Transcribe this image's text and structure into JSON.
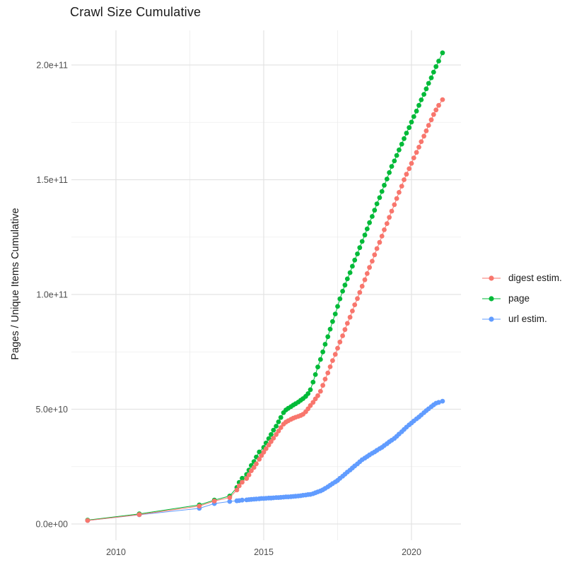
{
  "title": "Crawl Size Cumulative",
  "axes": {
    "y_title": "Pages / Unique Items Cumulative",
    "x_ticks": [
      {
        "label": "2010",
        "year": 2010
      },
      {
        "label": "2015",
        "year": 2015
      },
      {
        "label": "2020",
        "year": 2020
      }
    ],
    "x_minor_years": [
      2012.5,
      2017.5
    ],
    "y_ticks": [
      {
        "label": "0.0e+00",
        "value_e9": 0
      },
      {
        "label": "5.0e+10",
        "value_e9": 50
      },
      {
        "label": "1.0e+11",
        "value_e9": 100
      },
      {
        "label": "1.5e+11",
        "value_e9": 150
      },
      {
        "label": "2.0e+11",
        "value_e9": 200
      }
    ],
    "y_minor_e9": [
      25,
      75,
      125,
      175
    ]
  },
  "legend": {
    "items": [
      {
        "label": "digest estim.",
        "color": "#F8766D",
        "key": "digest"
      },
      {
        "label": "page",
        "color": "#00BA38",
        "key": "page"
      },
      {
        "label": "url estim.",
        "color": "#619CFF",
        "key": "url"
      }
    ]
  },
  "colors": {
    "background": "#FFFFFF",
    "grid_major": "#E3E3E3",
    "grid_minor": "#EDEDED",
    "axis_text": "#4D4D4D",
    "title_text": "#1A1A1A",
    "series_digest": "#F8766D",
    "series_page": "#00BA38",
    "series_url": "#619CFF"
  },
  "chart_data": {
    "type": "line",
    "title": "Crawl Size Cumulative",
    "xlabel": "",
    "ylabel": "Pages / Unique Items Cumulative",
    "x_range": [
      2008.5,
      2021.7
    ],
    "y_range_e9": [
      -7,
      215
    ],
    "y_unit_multiplier": 1000000000.0,
    "grid": true,
    "legend_position": "right",
    "marker": "point-with-line",
    "draw_order": [
      "url estim.",
      "page",
      "digest estim."
    ],
    "series": [
      {
        "name": "digest estim.",
        "color": "#F8766D",
        "points_year_value_e9": [
          [
            2009.04,
            1.5
          ],
          [
            2010.79,
            4.1
          ],
          [
            2012.82,
            7.8
          ],
          [
            2013.33,
            10.0
          ],
          [
            2013.85,
            11.5
          ],
          [
            2014.09,
            14.8
          ],
          [
            2014.17,
            16.6
          ],
          [
            2014.27,
            18.2
          ],
          [
            2014.42,
            19.8
          ],
          [
            2014.5,
            21.4
          ],
          [
            2014.58,
            23.2
          ],
          [
            2014.67,
            24.6
          ],
          [
            2014.75,
            26.2
          ],
          [
            2014.85,
            28.2
          ],
          [
            2014.92,
            29.8
          ],
          [
            2015.0,
            31.3
          ],
          [
            2015.08,
            32.8
          ],
          [
            2015.17,
            34.4
          ],
          [
            2015.25,
            35.9
          ],
          [
            2015.33,
            37.4
          ],
          [
            2015.42,
            39.0
          ],
          [
            2015.5,
            40.5
          ],
          [
            2015.58,
            42.0
          ],
          [
            2015.67,
            43.5
          ],
          [
            2015.75,
            44.4
          ],
          [
            2015.83,
            45.0
          ],
          [
            2015.92,
            45.6
          ],
          [
            2016.0,
            46.1
          ],
          [
            2016.08,
            46.5
          ],
          [
            2016.17,
            46.9
          ],
          [
            2016.25,
            47.3
          ],
          [
            2016.33,
            47.8
          ],
          [
            2016.42,
            48.9
          ],
          [
            2016.5,
            50.2
          ],
          [
            2016.58,
            51.6
          ],
          [
            2016.67,
            53.0
          ],
          [
            2016.75,
            54.5
          ],
          [
            2016.83,
            55.9
          ],
          [
            2016.92,
            57.8
          ],
          [
            2017.0,
            60.4
          ],
          [
            2017.08,
            63.1
          ],
          [
            2017.17,
            65.8
          ],
          [
            2017.25,
            68.5
          ],
          [
            2017.33,
            71.2
          ],
          [
            2017.42,
            73.9
          ],
          [
            2017.5,
            76.6
          ],
          [
            2017.58,
            79.3
          ],
          [
            2017.67,
            82.0
          ],
          [
            2017.75,
            84.7
          ],
          [
            2017.83,
            87.4
          ],
          [
            2017.92,
            90.1
          ],
          [
            2018.0,
            92.8
          ],
          [
            2018.08,
            95.5
          ],
          [
            2018.17,
            98.2
          ],
          [
            2018.25,
            100.9
          ],
          [
            2018.33,
            103.6
          ],
          [
            2018.42,
            106.4
          ],
          [
            2018.5,
            109.1
          ],
          [
            2018.58,
            111.8
          ],
          [
            2018.67,
            114.5
          ],
          [
            2018.75,
            117.3
          ],
          [
            2018.83,
            120.0
          ],
          [
            2018.92,
            122.7
          ],
          [
            2019.0,
            125.4
          ],
          [
            2019.08,
            128.2
          ],
          [
            2019.17,
            130.9
          ],
          [
            2019.25,
            133.6
          ],
          [
            2019.33,
            136.3
          ],
          [
            2019.42,
            139.1
          ],
          [
            2019.5,
            141.8
          ],
          [
            2019.58,
            144.5
          ],
          [
            2019.67,
            147.2
          ],
          [
            2019.75,
            150.0
          ],
          [
            2019.83,
            152.4
          ],
          [
            2019.92,
            154.8
          ],
          [
            2020.0,
            157.1
          ],
          [
            2020.08,
            159.5
          ],
          [
            2020.17,
            161.9
          ],
          [
            2020.25,
            164.2
          ],
          [
            2020.33,
            166.6
          ],
          [
            2020.42,
            169.0
          ],
          [
            2020.5,
            171.3
          ],
          [
            2020.58,
            173.7
          ],
          [
            2020.67,
            176.1
          ],
          [
            2020.75,
            178.4
          ],
          [
            2020.83,
            180.4
          ],
          [
            2020.92,
            182.4
          ],
          [
            2021.05,
            184.9
          ]
        ]
      },
      {
        "name": "page",
        "color": "#00BA38",
        "points_year_value_e9": [
          [
            2009.04,
            1.7
          ],
          [
            2010.79,
            4.4
          ],
          [
            2012.82,
            8.3
          ],
          [
            2013.33,
            10.4
          ],
          [
            2013.85,
            12.2
          ],
          [
            2014.09,
            15.9
          ],
          [
            2014.17,
            18.1
          ],
          [
            2014.27,
            19.9
          ],
          [
            2014.42,
            21.6
          ],
          [
            2014.5,
            23.5
          ],
          [
            2014.58,
            25.5
          ],
          [
            2014.67,
            27.2
          ],
          [
            2014.75,
            29.2
          ],
          [
            2014.85,
            31.4
          ],
          [
            2015.0,
            33.4
          ],
          [
            2015.08,
            35.3
          ],
          [
            2015.17,
            37.2
          ],
          [
            2015.25,
            39.0
          ],
          [
            2015.33,
            40.9
          ],
          [
            2015.42,
            42.6
          ],
          [
            2015.5,
            44.5
          ],
          [
            2015.58,
            46.4
          ],
          [
            2015.67,
            48.5
          ],
          [
            2015.75,
            49.7
          ],
          [
            2015.83,
            50.4
          ],
          [
            2015.92,
            51.1
          ],
          [
            2016.0,
            51.8
          ],
          [
            2016.08,
            52.4
          ],
          [
            2016.17,
            53.1
          ],
          [
            2016.25,
            53.9
          ],
          [
            2016.33,
            54.6
          ],
          [
            2016.42,
            55.6
          ],
          [
            2016.5,
            56.8
          ],
          [
            2016.58,
            58.5
          ],
          [
            2016.67,
            61.8
          ],
          [
            2016.75,
            65.1
          ],
          [
            2016.83,
            68.4
          ],
          [
            2016.92,
            71.7
          ],
          [
            2017.0,
            75.0
          ],
          [
            2017.08,
            78.3
          ],
          [
            2017.17,
            81.6
          ],
          [
            2017.25,
            84.9
          ],
          [
            2017.33,
            88.2
          ],
          [
            2017.42,
            91.5
          ],
          [
            2017.5,
            94.8
          ],
          [
            2017.58,
            98.1
          ],
          [
            2017.67,
            101.4
          ],
          [
            2017.75,
            104.1
          ],
          [
            2017.83,
            106.8
          ],
          [
            2017.92,
            109.5
          ],
          [
            2018.0,
            112.3
          ],
          [
            2018.08,
            115.0
          ],
          [
            2018.17,
            117.7
          ],
          [
            2018.25,
            120.4
          ],
          [
            2018.33,
            123.1
          ],
          [
            2018.42,
            125.9
          ],
          [
            2018.5,
            128.6
          ],
          [
            2018.58,
            131.3
          ],
          [
            2018.67,
            134.0
          ],
          [
            2018.75,
            136.7
          ],
          [
            2018.83,
            139.5
          ],
          [
            2018.92,
            142.2
          ],
          [
            2019.0,
            144.9
          ],
          [
            2019.08,
            147.6
          ],
          [
            2019.17,
            150.3
          ],
          [
            2019.25,
            153.1
          ],
          [
            2019.33,
            155.8
          ],
          [
            2019.42,
            158.2
          ],
          [
            2019.5,
            160.6
          ],
          [
            2019.58,
            163.0
          ],
          [
            2019.67,
            165.5
          ],
          [
            2019.75,
            167.9
          ],
          [
            2019.83,
            170.3
          ],
          [
            2019.92,
            172.7
          ],
          [
            2020.0,
            175.1
          ],
          [
            2020.08,
            177.5
          ],
          [
            2020.17,
            179.9
          ],
          [
            2020.25,
            182.4
          ],
          [
            2020.33,
            184.8
          ],
          [
            2020.42,
            187.2
          ],
          [
            2020.5,
            189.6
          ],
          [
            2020.58,
            192.0
          ],
          [
            2020.67,
            194.4
          ],
          [
            2020.75,
            196.9
          ],
          [
            2020.83,
            199.3
          ],
          [
            2020.92,
            201.7
          ],
          [
            2021.05,
            205.3
          ]
        ]
      },
      {
        "name": "url estim.",
        "color": "#619CFF",
        "points_year_value_e9": [
          [
            2009.04,
            1.5
          ],
          [
            2010.79,
            4.0
          ],
          [
            2012.82,
            6.8
          ],
          [
            2013.33,
            8.9
          ],
          [
            2013.85,
            9.8
          ],
          [
            2014.09,
            10.1
          ],
          [
            2014.17,
            10.2
          ],
          [
            2014.27,
            10.4
          ],
          [
            2014.42,
            10.5
          ],
          [
            2014.5,
            10.6
          ],
          [
            2014.58,
            10.7
          ],
          [
            2014.67,
            10.8
          ],
          [
            2014.75,
            10.9
          ],
          [
            2014.85,
            11.0
          ],
          [
            2014.92,
            11.1
          ],
          [
            2015.0,
            11.1
          ],
          [
            2015.08,
            11.2
          ],
          [
            2015.17,
            11.3
          ],
          [
            2015.25,
            11.3
          ],
          [
            2015.33,
            11.4
          ],
          [
            2015.42,
            11.5
          ],
          [
            2015.5,
            11.5
          ],
          [
            2015.58,
            11.6
          ],
          [
            2015.67,
            11.7
          ],
          [
            2015.75,
            11.8
          ],
          [
            2015.83,
            11.8
          ],
          [
            2015.92,
            11.9
          ],
          [
            2016.0,
            12.0
          ],
          [
            2016.08,
            12.1
          ],
          [
            2016.17,
            12.2
          ],
          [
            2016.25,
            12.3
          ],
          [
            2016.33,
            12.5
          ],
          [
            2016.42,
            12.6
          ],
          [
            2016.5,
            12.8
          ],
          [
            2016.58,
            12.9
          ],
          [
            2016.67,
            13.2
          ],
          [
            2016.75,
            13.6
          ],
          [
            2016.83,
            14.0
          ],
          [
            2016.92,
            14.4
          ],
          [
            2017.0,
            14.9
          ],
          [
            2017.08,
            15.5
          ],
          [
            2017.17,
            16.2
          ],
          [
            2017.25,
            16.9
          ],
          [
            2017.33,
            17.6
          ],
          [
            2017.42,
            18.3
          ],
          [
            2017.5,
            19.0
          ],
          [
            2017.58,
            19.9
          ],
          [
            2017.67,
            20.8
          ],
          [
            2017.75,
            21.7
          ],
          [
            2017.83,
            22.6
          ],
          [
            2017.92,
            23.5
          ],
          [
            2018.0,
            24.4
          ],
          [
            2018.08,
            25.3
          ],
          [
            2018.17,
            26.2
          ],
          [
            2018.25,
            27.1
          ],
          [
            2018.33,
            28.0
          ],
          [
            2018.42,
            28.7
          ],
          [
            2018.5,
            29.4
          ],
          [
            2018.58,
            30.1
          ],
          [
            2018.67,
            30.8
          ],
          [
            2018.75,
            31.4
          ],
          [
            2018.83,
            32.1
          ],
          [
            2018.92,
            32.8
          ],
          [
            2019.0,
            33.4
          ],
          [
            2019.08,
            34.2
          ],
          [
            2019.17,
            35.0
          ],
          [
            2019.25,
            35.8
          ],
          [
            2019.33,
            36.5
          ],
          [
            2019.42,
            37.3
          ],
          [
            2019.5,
            38.2
          ],
          [
            2019.58,
            39.2
          ],
          [
            2019.67,
            40.2
          ],
          [
            2019.75,
            41.2
          ],
          [
            2019.83,
            42.2
          ],
          [
            2019.92,
            43.2
          ],
          [
            2020.0,
            44.0
          ],
          [
            2020.08,
            44.9
          ],
          [
            2020.17,
            45.8
          ],
          [
            2020.25,
            46.6
          ],
          [
            2020.33,
            47.5
          ],
          [
            2020.42,
            48.5
          ],
          [
            2020.5,
            49.4
          ],
          [
            2020.58,
            50.2
          ],
          [
            2020.67,
            51.1
          ],
          [
            2020.75,
            51.9
          ],
          [
            2020.83,
            52.6
          ],
          [
            2020.92,
            53.0
          ],
          [
            2021.05,
            53.5
          ]
        ]
      }
    ]
  }
}
